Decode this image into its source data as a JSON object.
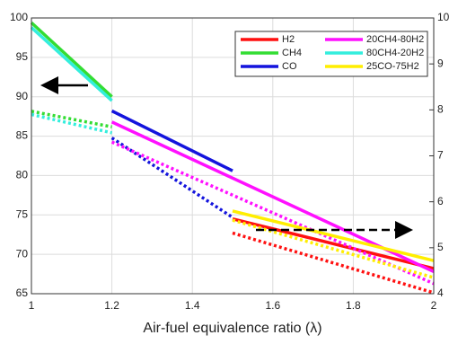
{
  "chart_data": {
    "type": "line",
    "x_label": "Air-fuel equivalence ratio (λ)",
    "xlim": [
      1,
      2
    ],
    "xticks": [
      1,
      1.2,
      1.4,
      1.6,
      1.8,
      2
    ],
    "ylim": [
      65,
      100
    ],
    "yticks": [
      65,
      70,
      75,
      80,
      85,
      90,
      95,
      100
    ],
    "y2lim": [
      4,
      10
    ],
    "y2ticks": [
      4,
      5,
      6,
      7,
      8,
      9,
      10
    ],
    "grid": true,
    "legend": "upper right",
    "series": [
      {
        "name": "H2",
        "color": "#ff1010",
        "x": [
          1.5,
          2
        ],
        "values": [
          74.5,
          68.2
        ],
        "y2_values": [
          5.32,
          4.02
        ]
      },
      {
        "name": "CH4",
        "color": "#33dd33",
        "x": [
          1,
          1.2
        ],
        "values": [
          99.4,
          90
        ],
        "y2_values": [
          7.97,
          7.63
        ]
      },
      {
        "name": "CO",
        "color": "#1414dd",
        "x": [
          1.2,
          1.5
        ],
        "values": [
          88.2,
          80.6
        ],
        "y2_values": [
          7.39,
          5.66
        ]
      },
      {
        "name": "20CH4-80H2",
        "color": "#ff10ff",
        "x": [
          1.2,
          2
        ],
        "values": [
          86.8,
          67.8
        ],
        "y2_values": [
          7.3,
          4.22
        ]
      },
      {
        "name": "80CH4-20H2",
        "color": "#33eedd",
        "x": [
          1,
          1.2
        ],
        "values": [
          98.8,
          89.5
        ],
        "y2_values": [
          7.9,
          7.5
        ]
      },
      {
        "name": "25CO-75H2",
        "color": "#ffee00",
        "x": [
          1.5,
          2
        ],
        "values": [
          75.5,
          69.2
        ],
        "y2_values": [
          5.6,
          4.35
        ]
      }
    ]
  }
}
